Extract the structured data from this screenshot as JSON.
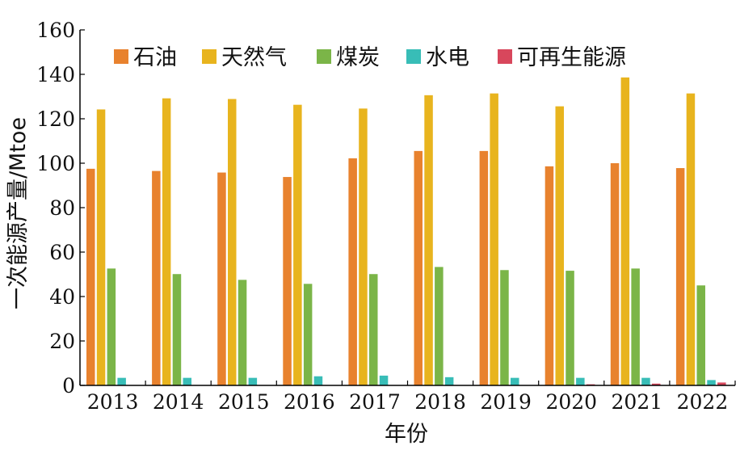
{
  "chart_data": {
    "type": "bar",
    "xlabel": "年份",
    "ylabel": "一次能源产量/Mtoe",
    "ylim": [
      0,
      160
    ],
    "yticks": [
      0,
      20,
      40,
      60,
      80,
      100,
      120,
      140,
      160
    ],
    "grid": false,
    "legend_position": "top",
    "categories": [
      "2013",
      "2014",
      "2015",
      "2016",
      "2017",
      "2018",
      "2019",
      "2020",
      "2021",
      "2022"
    ],
    "series": [
      {
        "name": "石油",
        "color": "#E8822E",
        "values": [
          97.5,
          96.5,
          95.8,
          93.8,
          102.2,
          105.5,
          105.5,
          98.6,
          100.0,
          97.8
        ]
      },
      {
        "name": "天然气",
        "color": "#E8B41E",
        "values": [
          124.2,
          129.2,
          128.9,
          126.3,
          124.6,
          130.6,
          131.4,
          125.6,
          138.6,
          131.4
        ]
      },
      {
        "name": "煤炭",
        "color": "#7BB548",
        "values": [
          52.6,
          50.1,
          47.5,
          45.7,
          50.1,
          53.3,
          51.9,
          51.6,
          52.6,
          45.0
        ]
      },
      {
        "name": "水电",
        "color": "#38BDB7",
        "values": [
          3.4,
          3.4,
          3.4,
          4.1,
          4.4,
          3.7,
          3.4,
          3.4,
          3.4,
          2.4
        ]
      },
      {
        "name": "可再生能源",
        "color": "#D8475C",
        "values": [
          0,
          0,
          0,
          0,
          0,
          0,
          0,
          0.5,
          0.8,
          1.3
        ]
      }
    ]
  }
}
